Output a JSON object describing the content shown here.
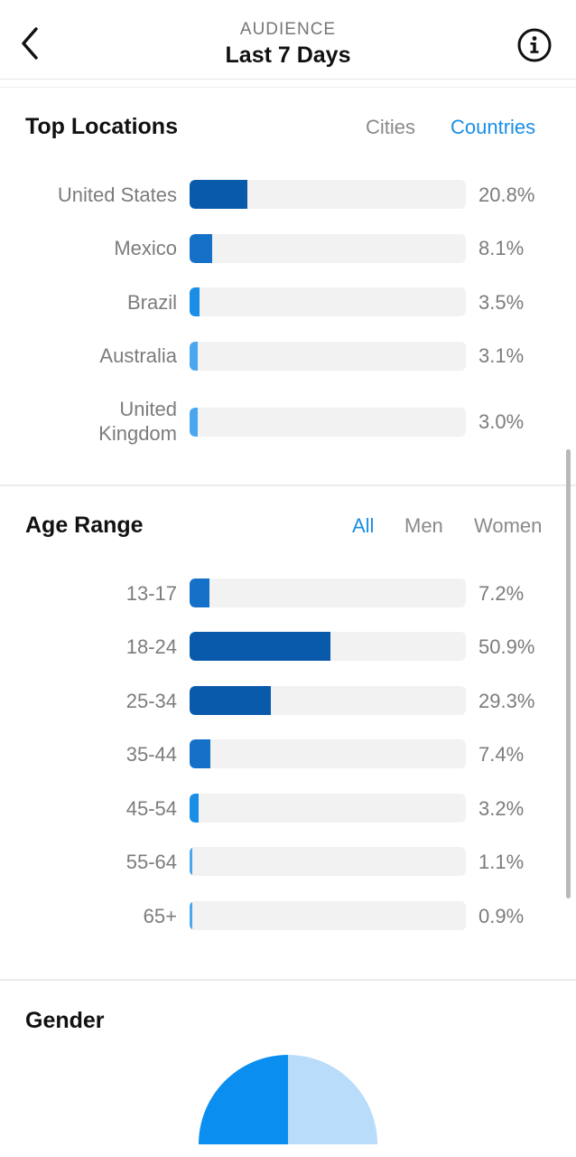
{
  "header": {
    "subtitle": "AUDIENCE",
    "title": "Last 7 Days"
  },
  "colors": {
    "accent": "#1a8ee6",
    "bar_dark": "#0a5aab",
    "bar_mid": "#1570c8",
    "bar_light": "#1a8ee6",
    "bar_lighter": "#4aa6ef",
    "gender_primary": "#0a8ef0",
    "gender_secondary": "#b9dcfb"
  },
  "locations": {
    "title": "Top Locations",
    "tabs": [
      {
        "label": "Cities",
        "active": false
      },
      {
        "label": "Countries",
        "active": true
      }
    ],
    "rows": [
      {
        "label": "United States",
        "value": "20.8%",
        "pct": 20.8
      },
      {
        "label": "Mexico",
        "value": "8.1%",
        "pct": 8.1
      },
      {
        "label": "Brazil",
        "value": "3.5%",
        "pct": 3.5
      },
      {
        "label": "Australia",
        "value": "3.1%",
        "pct": 3.1
      },
      {
        "label": "United Kingdom",
        "value": "3.0%",
        "pct": 3.0
      }
    ]
  },
  "age": {
    "title": "Age Range",
    "tabs": [
      {
        "label": "All",
        "active": true
      },
      {
        "label": "Men",
        "active": false
      },
      {
        "label": "Women",
        "active": false
      }
    ],
    "rows": [
      {
        "label": "13-17",
        "value": "7.2%",
        "pct": 7.2
      },
      {
        "label": "18-24",
        "value": "50.9%",
        "pct": 50.9
      },
      {
        "label": "25-34",
        "value": "29.3%",
        "pct": 29.3
      },
      {
        "label": "35-44",
        "value": "7.4%",
        "pct": 7.4
      },
      {
        "label": "45-54",
        "value": "3.2%",
        "pct": 3.2
      },
      {
        "label": "55-64",
        "value": "1.1%",
        "pct": 1.1
      },
      {
        "label": "65+",
        "value": "0.9%",
        "pct": 0.9
      }
    ]
  },
  "gender": {
    "title": "Gender"
  }
}
